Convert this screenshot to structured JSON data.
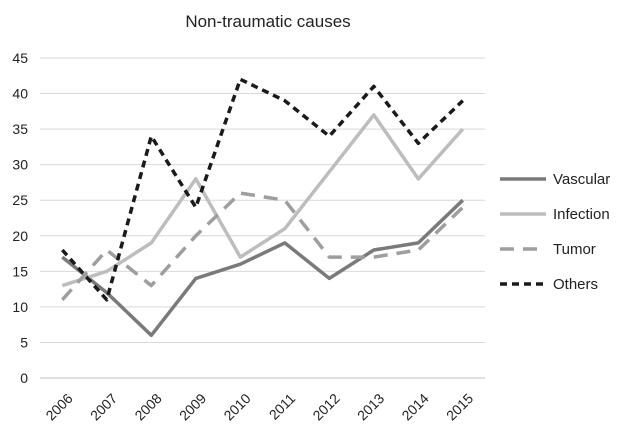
{
  "chart_data": {
    "type": "line",
    "title": "Non-traumatic causes",
    "xlabel": "",
    "ylabel": "",
    "categories": [
      "2006",
      "2007",
      "2008",
      "2009",
      "2010",
      "2011",
      "2012",
      "2013",
      "2014",
      "2015"
    ],
    "ylim": [
      0,
      45
    ],
    "yticks": [
      "0",
      "5",
      "10",
      "15",
      "20",
      "25",
      "30",
      "35",
      "40",
      "45"
    ],
    "grid": "horizontal",
    "legend_position": "right",
    "series": [
      {
        "name": "Vascular",
        "color": "#7a7a7a",
        "dash": "solid",
        "values": [
          17,
          12,
          6,
          14,
          16,
          19,
          14,
          18,
          19,
          25
        ]
      },
      {
        "name": "Infection",
        "color": "#bdbdbd",
        "dash": "solid",
        "values": [
          13,
          15,
          19,
          28,
          17,
          21,
          29,
          37,
          28,
          35
        ]
      },
      {
        "name": "Tumor",
        "color": "#9e9e9e",
        "dash": "dashed",
        "values": [
          11,
          18,
          13,
          20,
          26,
          25,
          17,
          17,
          18,
          24
        ]
      },
      {
        "name": "Others",
        "color": "#1a1a1a",
        "dash": "dotted",
        "values": [
          18,
          11,
          34,
          24,
          42,
          39,
          34,
          41,
          33,
          39
        ]
      }
    ]
  }
}
